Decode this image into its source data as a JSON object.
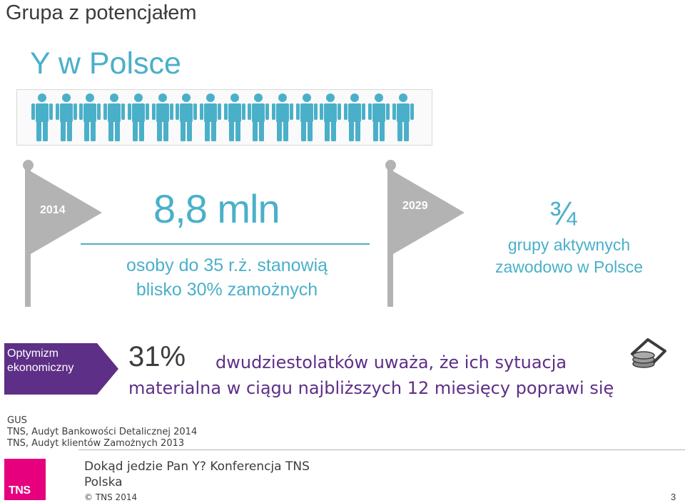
{
  "title": "Grupa z potencjałem",
  "subtitle": "Y w Polsce",
  "people_icon_count": 16,
  "colors": {
    "accent": "#4ab0c9",
    "purple": "#5d2f87",
    "gray": "#b3b3b3",
    "brand": "#e6007e"
  },
  "milestone_2014": {
    "year": "2014",
    "stat": "8,8 mln",
    "desc_line1": "osoby do 35 r.ż. stanowią",
    "desc_line2": "blisko 30% zamożnych"
  },
  "milestone_2029": {
    "year": "2029",
    "fraction": "¾",
    "desc_line1": "grupy aktywnych",
    "desc_line2": "zawodowo w Polsce"
  },
  "optimism": {
    "label_line1": "Optymizm",
    "label_line2": "ekonomiczny",
    "percent": "31%",
    "text_line1": "dwudziestolatków uważa, że ich sytuacja",
    "text_line2": "materialna w ciągu najbliższych 12 miesięcy poprawi się",
    "icon": "wallet-coins-icon"
  },
  "sources": [
    "GUS",
    "TNS, Audyt Bankowości Detalicznej 2014",
    "TNS, Audyt klientów Zamożnych 2013"
  ],
  "footer": {
    "logo_text": "TNS",
    "title_line1": "Dokąd jedzie Pan Y? Konferencja TNS",
    "title_line2": "Polska",
    "copyright": "© TNS 2014",
    "page_number": "3"
  }
}
